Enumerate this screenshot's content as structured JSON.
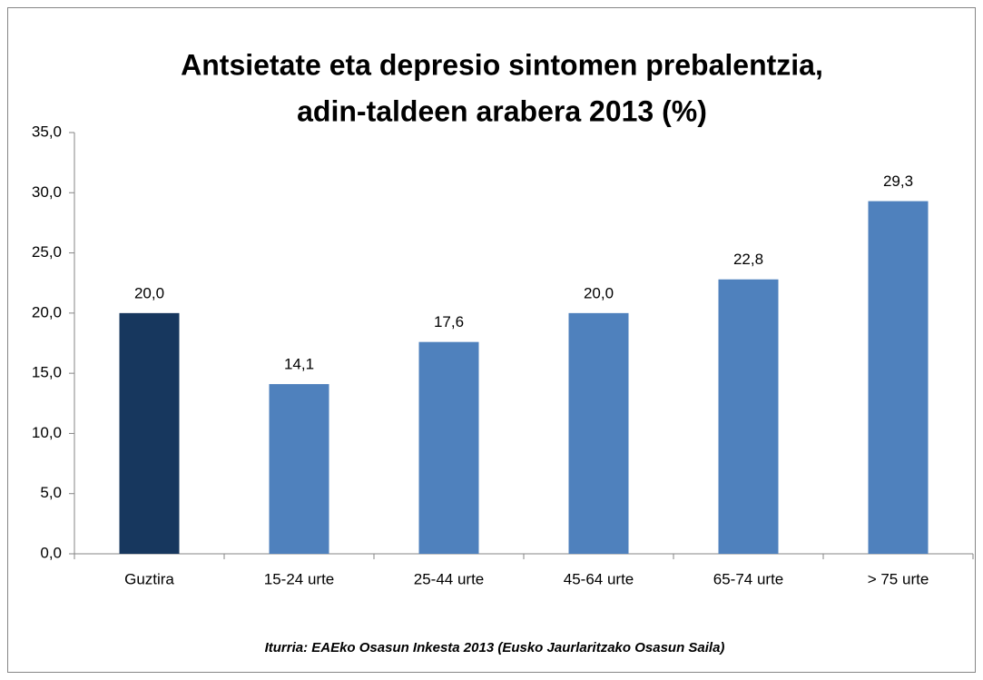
{
  "chart_data": {
    "type": "bar",
    "title": [
      "Antsietate eta depresio sintomen prebalentzia,",
      "adin-taldeen arabera 2013 (%)"
    ],
    "categories": [
      "Guztira",
      "15-24 urte",
      "25-44 urte",
      "45-64 urte",
      "65-74 urte",
      "> 75 urte"
    ],
    "values": [
      20.0,
      14.1,
      17.6,
      20.0,
      22.8,
      29.3
    ],
    "value_labels": [
      "20,0",
      "14,1",
      "17,6",
      "20,0",
      "22,8",
      "29,3"
    ],
    "colors": [
      "#17375e",
      "#4f81bd",
      "#4f81bd",
      "#4f81bd",
      "#4f81bd",
      "#4f81bd"
    ],
    "ylim": [
      0,
      35
    ],
    "yticks": [
      {
        "value": 0,
        "label": "0,0"
      },
      {
        "value": 5,
        "label": "5,0"
      },
      {
        "value": 10,
        "label": "10,0"
      },
      {
        "value": 15,
        "label": "15,0"
      },
      {
        "value": 20,
        "label": "20,0"
      },
      {
        "value": 25,
        "label": "25,0"
      },
      {
        "value": 30,
        "label": "30,0"
      },
      {
        "value": 35,
        "label": "35,0"
      }
    ],
    "grid": false,
    "source": "Iturria: EAEko Osasun Inkesta 2013 (Eusko Jaurlaritzako Osasun Saila)"
  }
}
